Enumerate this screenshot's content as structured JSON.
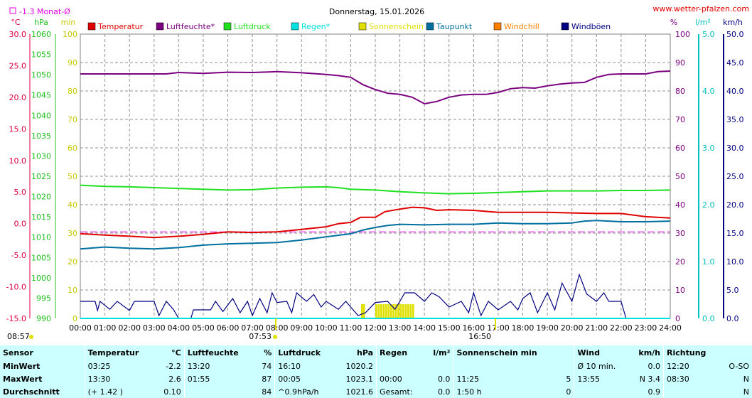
{
  "header": {
    "title": "Donnerstag, 15.01.2026",
    "site": "www.wetter-pfalzen.com",
    "month_avg": "-1.3 Monat-Ø",
    "sunrise": "07:53",
    "sunset": "16:50",
    "time_left": "08:57"
  },
  "units": {
    "temp": "°C",
    "press": "hPa",
    "sun": "min",
    "hum": "%",
    "rain": "l/m²",
    "wind": "km/h"
  },
  "colors": {
    "temperatur": "#e00000",
    "luftfeuchte": "#7a0080",
    "luftdruck": "#20e020",
    "regen": "#00e0e0",
    "sonnenschein": "#e0e000",
    "taupunkt": "#0070a0",
    "windchill": "#ff8000",
    "windboeen": "#000080",
    "month_avg": "#e000e0",
    "ax_temp": "#e00040",
    "ax_press": "#20c020",
    "ax_sun": "#c8c800",
    "ax_hum": "#7a0080",
    "ax_rain": "#00c0c0",
    "ax_wind": "#000080"
  },
  "chart_data": {
    "type": "line",
    "x_ticks": [
      "00:00",
      "01:00",
      "02:00",
      "03:00",
      "04:00",
      "05:00",
      "06:00",
      "07:00",
      "08:00",
      "09:00",
      "10:00",
      "11:00",
      "12:00",
      "13:00",
      "14:00",
      "15:00",
      "16:00",
      "17:00",
      "18:00",
      "19:00",
      "20:00",
      "21:00",
      "22:00",
      "23:00",
      "24:00"
    ],
    "axes": {
      "temp": {
        "ticks": [
          "30.0",
          "25.0",
          "20.0",
          "15.0",
          "10.0",
          "5.0",
          "0.0",
          "-5.0",
          "-10.0",
          "-15.0"
        ],
        "range": [
          -15,
          30
        ]
      },
      "press": {
        "ticks": [
          "1060",
          "1055",
          "1050",
          "1045",
          "1040",
          "1035",
          "1030",
          "1025",
          "1020",
          "1015",
          "1010",
          "1005",
          "1000",
          "995",
          "990"
        ],
        "range": [
          990,
          1060
        ]
      },
      "sun": {
        "ticks": [
          "100",
          "90",
          "80",
          "70",
          "60",
          "50",
          "40",
          "30",
          "20",
          "10",
          "0"
        ],
        "range": [
          0,
          100
        ]
      },
      "hum": {
        "ticks": [
          "100",
          "90",
          "80",
          "70",
          "60",
          "50",
          "40",
          "30",
          "20",
          "10",
          "0"
        ],
        "range": [
          0,
          100
        ]
      },
      "rain": {
        "ticks": [
          "5.0",
          "4.0",
          "3.0",
          "2.0",
          "1.0",
          "0.0"
        ],
        "range": [
          0,
          5
        ]
      },
      "wind": {
        "ticks": [
          "50.0",
          "45.0",
          "40.0",
          "35.0",
          "30.0",
          "25.0",
          "20.0",
          "15.0",
          "10.0",
          "5.0",
          "0.0"
        ],
        "range": [
          0,
          50
        ]
      }
    },
    "legend": [
      "Temperatur",
      "Luftfeuchte*",
      "Luftdruck",
      "Regen*",
      "Sonnenschein",
      "Taupunkt",
      "Windchill",
      "Windböen"
    ],
    "month_avg_value": -1.3,
    "series": [
      {
        "name": "Luftfeuchte*",
        "axis": "hum",
        "color_key": "luftfeuchte",
        "points": [
          [
            0,
            86
          ],
          [
            1,
            86
          ],
          [
            2,
            86
          ],
          [
            3,
            86
          ],
          [
            3.5,
            86
          ],
          [
            4,
            86.5
          ],
          [
            5,
            86.2
          ],
          [
            6,
            86.6
          ],
          [
            7,
            86.5
          ],
          [
            8,
            86.8
          ],
          [
            9,
            86.4
          ],
          [
            10,
            85.8
          ],
          [
            10.5,
            85.4
          ],
          [
            11,
            84.8
          ],
          [
            11.5,
            82.2
          ],
          [
            12,
            80.5
          ],
          [
            12.5,
            79.2
          ],
          [
            13,
            78.8
          ],
          [
            13.5,
            77.8
          ],
          [
            14,
            75.5
          ],
          [
            14.5,
            76.3
          ],
          [
            15,
            77.8
          ],
          [
            15.5,
            78.6
          ],
          [
            16,
            78.8
          ],
          [
            16.5,
            78.8
          ],
          [
            17,
            79.5
          ],
          [
            17.5,
            80.8
          ],
          [
            18,
            81.2
          ],
          [
            18.5,
            81
          ],
          [
            19,
            81.8
          ],
          [
            19.5,
            82.4
          ],
          [
            20,
            82.8
          ],
          [
            20.5,
            83
          ],
          [
            21,
            84.8
          ],
          [
            21.5,
            85.8
          ],
          [
            22,
            86
          ],
          [
            23,
            86
          ],
          [
            23.5,
            86.8
          ],
          [
            24,
            87
          ]
        ]
      },
      {
        "name": "Luftdruck",
        "axis": "press",
        "color_key": "luftdruck",
        "points": [
          [
            0,
            1022.8
          ],
          [
            1,
            1022.5
          ],
          [
            2,
            1022.4
          ],
          [
            3,
            1022.2
          ],
          [
            4,
            1022
          ],
          [
            5,
            1021.8
          ],
          [
            6,
            1021.6
          ],
          [
            7,
            1021.7
          ],
          [
            8,
            1022.1
          ],
          [
            9,
            1022.3
          ],
          [
            10,
            1022.4
          ],
          [
            10.5,
            1022.2
          ],
          [
            11,
            1021.8
          ],
          [
            12,
            1021.6
          ],
          [
            13,
            1021.2
          ],
          [
            14,
            1020.9
          ],
          [
            15,
            1020.7
          ],
          [
            16,
            1020.8
          ],
          [
            17,
            1021
          ],
          [
            18,
            1021.2
          ],
          [
            19,
            1021.4
          ],
          [
            20,
            1021.4
          ],
          [
            21,
            1021.4
          ],
          [
            22,
            1021.5
          ],
          [
            23,
            1021.5
          ],
          [
            24,
            1021.6
          ]
        ]
      },
      {
        "name": "Temperatur",
        "axis": "temp",
        "color_key": "temperatur",
        "points": [
          [
            0,
            -1.6
          ],
          [
            1,
            -1.8
          ],
          [
            2,
            -2
          ],
          [
            3,
            -2.2
          ],
          [
            4,
            -2
          ],
          [
            5,
            -1.7
          ],
          [
            6,
            -1.3
          ],
          [
            7,
            -1.4
          ],
          [
            8,
            -1.3
          ],
          [
            9,
            -0.9
          ],
          [
            10,
            -0.5
          ],
          [
            10.5,
            0
          ],
          [
            11,
            0.2
          ],
          [
            11.4,
            1
          ],
          [
            11.8,
            1
          ],
          [
            12,
            1
          ],
          [
            12.4,
            1.9
          ],
          [
            13,
            2.3
          ],
          [
            13.5,
            2.6
          ],
          [
            14,
            2.5
          ],
          [
            14.5,
            2.1
          ],
          [
            15,
            2.2
          ],
          [
            16,
            2.1
          ],
          [
            17,
            1.8
          ],
          [
            18,
            1.8
          ],
          [
            19,
            1.8
          ],
          [
            20,
            1.7
          ],
          [
            21,
            1.6
          ],
          [
            22,
            1.6
          ],
          [
            23,
            1.1
          ],
          [
            24,
            0.9
          ]
        ]
      },
      {
        "name": "Taupunkt",
        "axis": "temp",
        "color_key": "taupunkt",
        "points": [
          [
            0,
            -4
          ],
          [
            1,
            -3.7
          ],
          [
            2,
            -3.9
          ],
          [
            3,
            -4
          ],
          [
            4,
            -3.8
          ],
          [
            5,
            -3.4
          ],
          [
            6,
            -3.2
          ],
          [
            7,
            -3.1
          ],
          [
            8,
            -3
          ],
          [
            9,
            -2.6
          ],
          [
            10,
            -2.1
          ],
          [
            11,
            -1.6
          ],
          [
            11.5,
            -1
          ],
          [
            12,
            -0.6
          ],
          [
            12.5,
            -0.3
          ],
          [
            13,
            -0.1
          ],
          [
            14,
            -0.2
          ],
          [
            15,
            -0.1
          ],
          [
            16,
            -0.1
          ],
          [
            17,
            0.1
          ],
          [
            18,
            0
          ],
          [
            19,
            0
          ],
          [
            20,
            0.1
          ],
          [
            20.5,
            0.4
          ],
          [
            21,
            0.5
          ],
          [
            22,
            0.3
          ],
          [
            23,
            0.3
          ],
          [
            24,
            0.4
          ]
        ]
      },
      {
        "name": "Windböen",
        "axis": "wind",
        "color_key": "windboeen",
        "points": [
          [
            0,
            3
          ],
          [
            0.6,
            3
          ],
          [
            0.7,
            1.4
          ],
          [
            0.8,
            3
          ],
          [
            1.2,
            1.6
          ],
          [
            1.5,
            3
          ],
          [
            2,
            1.4
          ],
          [
            2.2,
            3
          ],
          [
            3,
            3
          ],
          [
            3.2,
            0.5
          ],
          [
            3.5,
            3
          ],
          [
            3.8,
            1.5
          ],
          [
            4,
            0
          ],
          [
            4.5,
            0
          ],
          [
            4.6,
            1.5
          ],
          [
            5.3,
            1.5
          ],
          [
            5.5,
            3
          ],
          [
            5.8,
            1.2
          ],
          [
            6.2,
            3.5
          ],
          [
            6.5,
            1
          ],
          [
            6.8,
            3
          ],
          [
            7,
            0.5
          ],
          [
            7.3,
            3.5
          ],
          [
            7.6,
            1
          ],
          [
            7.8,
            4.5
          ],
          [
            8,
            2.8
          ],
          [
            8.4,
            3
          ],
          [
            8.6,
            1
          ],
          [
            8.8,
            4.5
          ],
          [
            9.2,
            3
          ],
          [
            9.5,
            4.2
          ],
          [
            9.8,
            2
          ],
          [
            10,
            3
          ],
          [
            10.5,
            1.6
          ],
          [
            10.8,
            3
          ],
          [
            11,
            2
          ],
          [
            11.3,
            0.5
          ],
          [
            11.6,
            1
          ],
          [
            12,
            2.8
          ],
          [
            12.5,
            3
          ],
          [
            12.8,
            1.6
          ],
          [
            13,
            3
          ],
          [
            13.2,
            4.5
          ],
          [
            13.6,
            4.5
          ],
          [
            14,
            3
          ],
          [
            14.3,
            4.5
          ],
          [
            14.6,
            3.8
          ],
          [
            15,
            2
          ],
          [
            15.5,
            3
          ],
          [
            15.8,
            1
          ],
          [
            16,
            4.5
          ],
          [
            16.3,
            0.5
          ],
          [
            16.6,
            3
          ],
          [
            17,
            1.5
          ],
          [
            17.5,
            3
          ],
          [
            17.8,
            1.5
          ],
          [
            18,
            3.5
          ],
          [
            18.3,
            4.5
          ],
          [
            18.6,
            1
          ],
          [
            19,
            4.5
          ],
          [
            19.3,
            1.5
          ],
          [
            19.6,
            6.2
          ],
          [
            20,
            3
          ],
          [
            20.3,
            7.7
          ],
          [
            20.6,
            4.3
          ],
          [
            21,
            3
          ],
          [
            21.3,
            4.5
          ],
          [
            21.5,
            3
          ],
          [
            22,
            3
          ],
          [
            22.2,
            0
          ],
          [
            24,
            0
          ]
        ]
      },
      {
        "name": "Regen*",
        "axis": "rain",
        "color_key": "regen",
        "points": [
          [
            0,
            0
          ],
          [
            24,
            0
          ]
        ]
      }
    ],
    "sunshine_bars": {
      "name": "Sonnenschein",
      "axis": "sun",
      "color_key": "sonnenschein",
      "bars": [
        [
          11.42,
          5
        ],
        [
          11.5,
          5
        ],
        [
          12,
          5
        ],
        [
          12.1,
          5
        ],
        [
          12.2,
          5
        ],
        [
          12.3,
          5
        ],
        [
          12.4,
          5
        ],
        [
          12.5,
          5
        ],
        [
          12.6,
          5
        ],
        [
          12.7,
          5
        ],
        [
          12.8,
          5
        ],
        [
          12.9,
          5
        ],
        [
          13,
          5
        ],
        [
          13.1,
          5
        ],
        [
          13.2,
          5
        ],
        [
          13.3,
          5
        ],
        [
          13.4,
          5
        ],
        [
          13.5,
          5
        ]
      ]
    }
  },
  "summary": {
    "headers": [
      [
        "Sensor",
        ""
      ],
      [
        "Temperatur",
        "°C"
      ],
      [
        "Luftfeuchte",
        "%"
      ],
      [
        "Luftdruck",
        "hPa"
      ],
      [
        "Regen",
        "l/m²"
      ],
      [
        "Sonnenschein min",
        ""
      ],
      [
        "Wind",
        "km/h"
      ],
      [
        "Richtung",
        ""
      ]
    ],
    "rows": [
      {
        "label": "MinWert",
        "cells": [
          [
            "03:25",
            "-2.2"
          ],
          [
            "13:20",
            "74"
          ],
          [
            "16:10",
            "1020.2"
          ],
          [
            "",
            ""
          ],
          [
            "",
            ""
          ],
          [
            "Ø 10 min.",
            "0.0"
          ],
          [
            "12:20",
            "O-SO"
          ]
        ]
      },
      {
        "label": "MaxWert",
        "cells": [
          [
            "13:30",
            "2.6"
          ],
          [
            "01:55",
            "87"
          ],
          [
            "00:05",
            "1023.1"
          ],
          [
            "00:00",
            "0.0"
          ],
          [
            "11:25",
            "5"
          ],
          [
            "13:55",
            "N 3.4"
          ],
          [
            "08:30",
            "N"
          ]
        ]
      },
      {
        "label": "Durchschnitt",
        "cells": [
          [
            "(+ 1.42 )",
            "0.10"
          ],
          [
            "",
            "84"
          ],
          [
            "^0.9hPa/h",
            "1021.6"
          ],
          [
            "Gesamt:",
            "0.0"
          ],
          [
            "1:50 h",
            "0"
          ],
          [
            "",
            "0.9"
          ],
          [
            "",
            "N"
          ]
        ]
      }
    ]
  }
}
